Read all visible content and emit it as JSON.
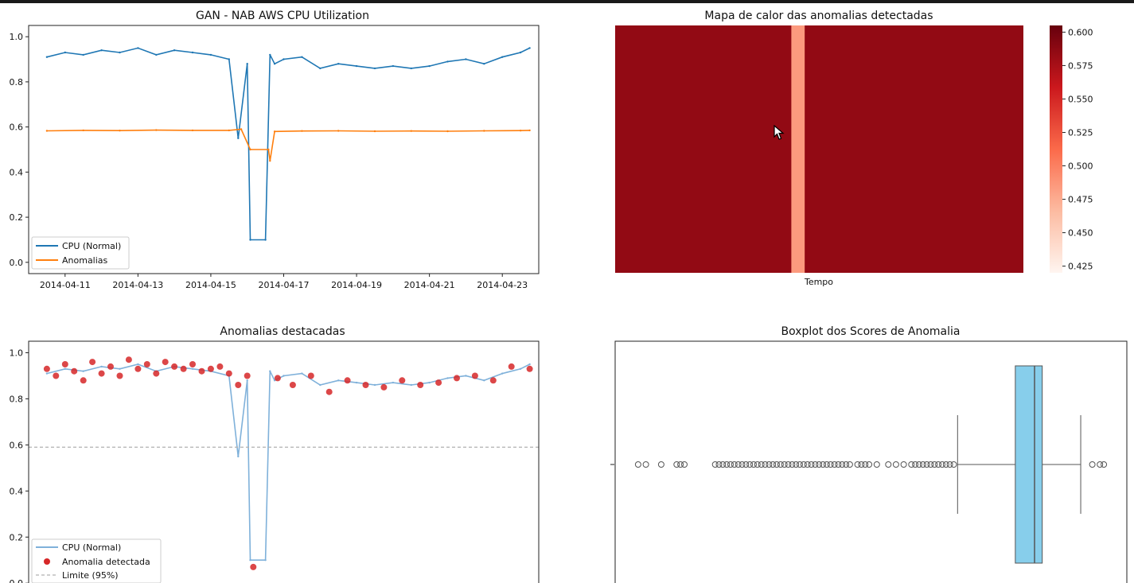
{
  "chart_data": [
    {
      "type": "line",
      "title": "GAN - NAB AWS CPU Utilization",
      "xlabel": "",
      "ylabel": "",
      "x_range": [
        "2014-04-10",
        "2014-04-24"
      ],
      "ylim": [
        -0.05,
        1.05
      ],
      "x_ticks": [
        "2014-04-11",
        "2014-04-13",
        "2014-04-15",
        "2014-04-17",
        "2014-04-19",
        "2014-04-21",
        "2014-04-23"
      ],
      "y_ticks": [
        "0.0",
        "0.2",
        "0.4",
        "0.6",
        "0.8",
        "1.0"
      ],
      "legend_position": "lower-left",
      "series": [
        {
          "name": "CPU (Normal)",
          "color": "#1f77b4",
          "x": [
            "2014-04-10T12:00",
            "2014-04-11T00:00",
            "2014-04-11T12:00",
            "2014-04-12T00:00",
            "2014-04-12T12:00",
            "2014-04-13T00:00",
            "2014-04-13T12:00",
            "2014-04-14T00:00",
            "2014-04-14T12:00",
            "2014-04-15T00:00",
            "2014-04-15T12:00",
            "2014-04-15T18:00",
            "2014-04-16T00:00",
            "2014-04-16T02:00",
            "2014-04-16T12:00",
            "2014-04-16T15:00",
            "2014-04-16T18:00",
            "2014-04-17T00:00",
            "2014-04-17T12:00",
            "2014-04-18T00:00",
            "2014-04-18T12:00",
            "2014-04-19T00:00",
            "2014-04-19T12:00",
            "2014-04-20T00:00",
            "2014-04-20T12:00",
            "2014-04-21T00:00",
            "2014-04-21T12:00",
            "2014-04-22T00:00",
            "2014-04-22T12:00",
            "2014-04-23T00:00",
            "2014-04-23T12:00",
            "2014-04-23T18:00"
          ],
          "values": [
            0.91,
            0.93,
            0.92,
            0.94,
            0.93,
            0.95,
            0.92,
            0.94,
            0.93,
            0.92,
            0.9,
            0.55,
            0.88,
            0.1,
            0.1,
            0.92,
            0.88,
            0.9,
            0.91,
            0.86,
            0.88,
            0.87,
            0.86,
            0.87,
            0.86,
            0.87,
            0.89,
            0.9,
            0.88,
            0.91,
            0.93,
            0.95
          ]
        },
        {
          "name": "Anomalias",
          "color": "#ff7f0e",
          "x": [
            "2014-04-10T12:00",
            "2014-04-11T12:00",
            "2014-04-12T12:00",
            "2014-04-13T12:00",
            "2014-04-14T12:00",
            "2014-04-15T12:00",
            "2014-04-15T20:00",
            "2014-04-16T02:00",
            "2014-04-16T14:00",
            "2014-04-16T15:00",
            "2014-04-16T18:00",
            "2014-04-17T12:00",
            "2014-04-18T12:00",
            "2014-04-19T12:00",
            "2014-04-20T12:00",
            "2014-04-21T12:00",
            "2014-04-22T12:00",
            "2014-04-23T12:00",
            "2014-04-23T18:00"
          ],
          "values": [
            0.583,
            0.585,
            0.584,
            0.586,
            0.585,
            0.585,
            0.59,
            0.5,
            0.5,
            0.45,
            0.58,
            0.582,
            0.583,
            0.581,
            0.582,
            0.581,
            0.583,
            0.584,
            0.585
          ]
        }
      ]
    },
    {
      "type": "heatmap",
      "title": "Mapa de calor das anomalias detectadas",
      "xlabel": "Tempo",
      "colormap": "Reds",
      "vmin": 0.42,
      "vmax": 0.605,
      "colorbar_ticks": [
        "0.425",
        "0.450",
        "0.475",
        "0.500",
        "0.525",
        "0.550",
        "0.575",
        "0.600"
      ],
      "low_band_time_range": [
        "2014-04-16T01:00",
        "2014-04-16T12:00"
      ],
      "low_band_value": 0.485,
      "baseline_value": 0.585
    },
    {
      "type": "scatter",
      "title": "Anomalias destacadas",
      "ylim": [
        -0.02,
        1.05
      ],
      "y_ticks": [
        "0.0",
        "0.2",
        "0.4",
        "0.6",
        "0.8",
        "1.0"
      ],
      "legend_position": "lower-left",
      "threshold": 0.59,
      "series": [
        {
          "name": "CPU (Normal)",
          "color": "#7fb1da"
        },
        {
          "name": "Anomalia detectada",
          "color": "#d62728",
          "x": [
            "2014-04-10T12:00",
            "2014-04-10T18:00",
            "2014-04-11T00:00",
            "2014-04-11T06:00",
            "2014-04-11T12:00",
            "2014-04-11T18:00",
            "2014-04-12T00:00",
            "2014-04-12T06:00",
            "2014-04-12T12:00",
            "2014-04-12T18:00",
            "2014-04-13T00:00",
            "2014-04-13T06:00",
            "2014-04-13T12:00",
            "2014-04-13T18:00",
            "2014-04-14T00:00",
            "2014-04-14T06:00",
            "2014-04-14T12:00",
            "2014-04-14T18:00",
            "2014-04-15T00:00",
            "2014-04-15T06:00",
            "2014-04-15T12:00",
            "2014-04-15T18:00",
            "2014-04-16T00:00",
            "2014-04-16T04:00",
            "2014-04-16T20:00",
            "2014-04-17T06:00",
            "2014-04-17T18:00",
            "2014-04-18T06:00",
            "2014-04-18T18:00",
            "2014-04-19T06:00",
            "2014-04-19T18:00",
            "2014-04-20T06:00",
            "2014-04-20T18:00",
            "2014-04-21T06:00",
            "2014-04-21T18:00",
            "2014-04-22T06:00",
            "2014-04-22T18:00",
            "2014-04-23T06:00",
            "2014-04-23T18:00"
          ],
          "values": [
            0.93,
            0.9,
            0.95,
            0.92,
            0.88,
            0.96,
            0.91,
            0.94,
            0.9,
            0.97,
            0.93,
            0.95,
            0.91,
            0.96,
            0.94,
            0.93,
            0.95,
            0.92,
            0.93,
            0.94,
            0.91,
            0.86,
            0.9,
            0.07,
            0.89,
            0.86,
            0.9,
            0.83,
            0.88,
            0.86,
            0.85,
            0.88,
            0.86,
            0.87,
            0.89,
            0.9,
            0.88,
            0.94,
            0.93
          ]
        },
        {
          "name": "Limite (95%)",
          "color": "#b0b0b0"
        }
      ]
    },
    {
      "type": "box",
      "title": "Boxplot dos Scores de Anomalia",
      "orientation": "horizontal",
      "color": "#87ceeb",
      "whisker_low": 0.563,
      "q1": 0.578,
      "median": 0.583,
      "q3": 0.585,
      "whisker_high": 0.595,
      "outliers": [
        0.48,
        0.482,
        0.486,
        0.49,
        0.491,
        0.492,
        0.5,
        0.501,
        0.502,
        0.503,
        0.504,
        0.505,
        0.506,
        0.507,
        0.508,
        0.509,
        0.51,
        0.511,
        0.512,
        0.513,
        0.514,
        0.515,
        0.516,
        0.517,
        0.518,
        0.519,
        0.52,
        0.521,
        0.522,
        0.523,
        0.524,
        0.525,
        0.526,
        0.527,
        0.528,
        0.529,
        0.53,
        0.531,
        0.532,
        0.533,
        0.534,
        0.535,
        0.537,
        0.538,
        0.539,
        0.54,
        0.542,
        0.545,
        0.547,
        0.549,
        0.551,
        0.552,
        0.553,
        0.554,
        0.555,
        0.556,
        0.557,
        0.558,
        0.559,
        0.56,
        0.561,
        0.562,
        0.598,
        0.6,
        0.601
      ]
    }
  ]
}
